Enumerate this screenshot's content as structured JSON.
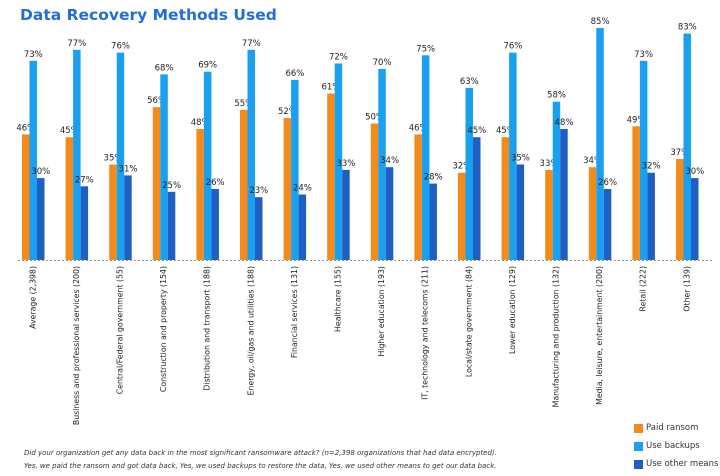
{
  "colors": {
    "paid": "#f28a1c",
    "backups": "#1aa0f0",
    "other": "#1f5fc4",
    "title": "#1f6fd6"
  },
  "chart_data": {
    "type": "bar",
    "title": "Data Recovery Methods Used",
    "categories": [
      "Average (2,398)",
      "Business and professional services (200)",
      "Central/Federal government (55)",
      "Construction and property (154)",
      "Distribution and transport (188)",
      "Energy, oil/gas and utilities (188)",
      "Financial services (131)",
      "Healthcare (155)",
      "Higher education (193)",
      "IT, technology and telecoms (211)",
      "Local/state government (84)",
      "Lower education (129)",
      "Manufacturing and production (132)",
      "Media, leisure, entertainment (200)",
      "Retail (222)",
      "Other (139)"
    ],
    "series": [
      {
        "name": "Paid ransom",
        "values": [
          46,
          45,
          35,
          56,
          48,
          55,
          52,
          61,
          50,
          46,
          32,
          45,
          33,
          34,
          49,
          37
        ]
      },
      {
        "name": "Use backups",
        "values": [
          73,
          77,
          76,
          68,
          69,
          77,
          66,
          72,
          70,
          75,
          63,
          76,
          58,
          85,
          73,
          83
        ]
      },
      {
        "name": "Use other means",
        "values": [
          30,
          27,
          31,
          25,
          26,
          23,
          24,
          33,
          34,
          28,
          45,
          35,
          48,
          26,
          32,
          30
        ]
      }
    ],
    "value_labels": [
      [
        "46%",
        "45%",
        "35%",
        "56%",
        "48%",
        "55%",
        "52%",
        "61%",
        "50%",
        "46%",
        "32%",
        "45%",
        "33%",
        "34%",
        "49%",
        "37%"
      ],
      [
        "73%",
        "77%",
        "76%",
        "68%",
        "69%",
        "77%",
        "66%",
        "72%",
        "70%",
        "75%",
        "63%",
        "76%",
        "58%",
        "85%",
        "73%",
        "83%"
      ],
      [
        "30%",
        "27%",
        "31%",
        "25%",
        "26%",
        "23%",
        "24%",
        "33%",
        "34%",
        "28%",
        "45%",
        "35%",
        "48%",
        "26%",
        "32%",
        "30%"
      ]
    ],
    "ylim": [
      0,
      85
    ],
    "xlabel": "",
    "ylabel": "",
    "grid": false,
    "legend_position": "bottom-right"
  },
  "legend": [
    {
      "label": "Paid ransom",
      "color": "#f28a1c"
    },
    {
      "label": "Use backups",
      "color": "#1aa0f0"
    },
    {
      "label": "Use other means",
      "color": "#1f5fc4"
    }
  ],
  "footnote": {
    "line1": "Did your organization get any data back in the most significant ransomware attack? (n=2,398 organizations that had data encrypted).",
    "line2": "Yes, we paid the ransom and got data back, Yes, we used backups to restore the data, Yes, we used other means to get our data back."
  }
}
